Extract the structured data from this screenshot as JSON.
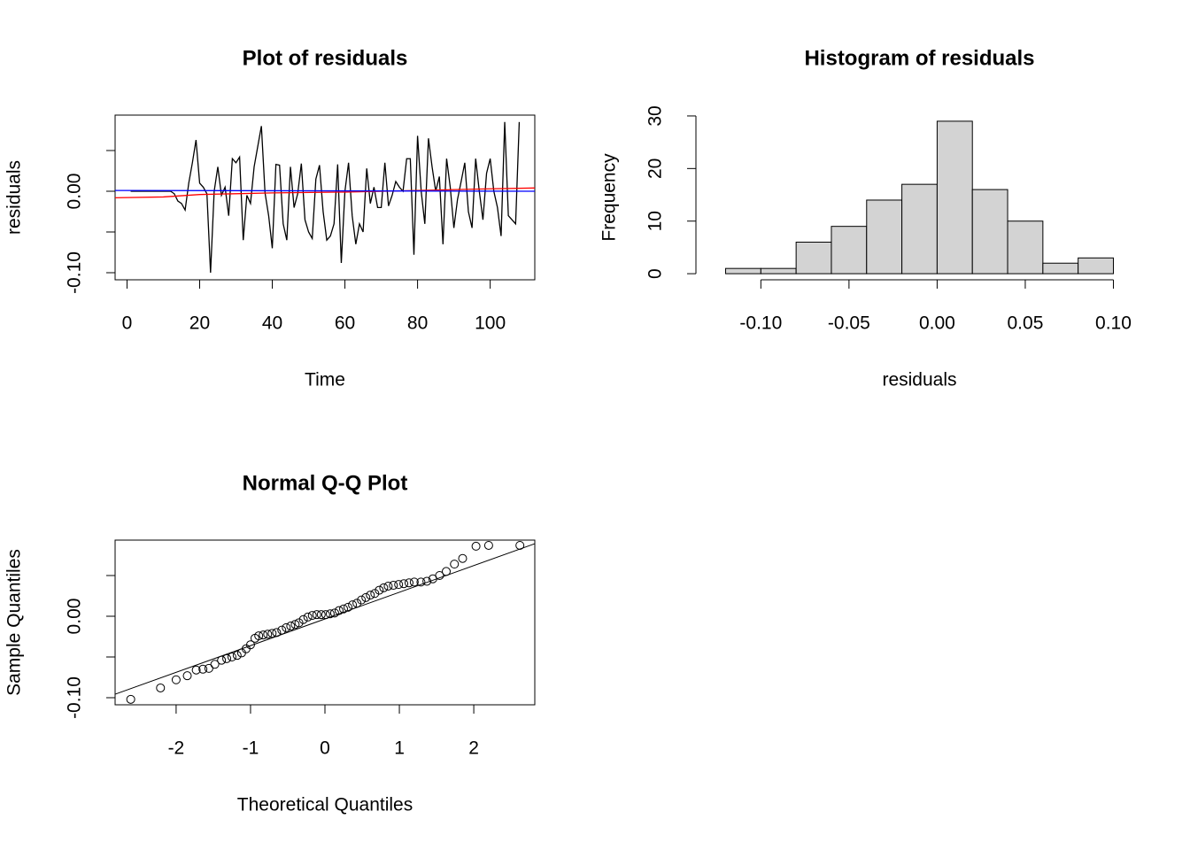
{
  "chart_data": [
    {
      "type": "line",
      "title": "Plot of residuals",
      "xlabel": "Time",
      "ylabel": "residuals",
      "box": true,
      "xlim": [
        -3.28,
        112.28
      ],
      "xticks": [
        0,
        20,
        40,
        60,
        80,
        100
      ],
      "ylim": [
        -0.1087,
        0.0935
      ],
      "yticks": [
        {
          "value": -0.1,
          "label": "-0.10"
        },
        {
          "value": -0.05,
          "label": null
        },
        {
          "value": 0,
          "label": "0.00"
        },
        {
          "value": 0.05,
          "label": null
        }
      ],
      "series": [
        {
          "color": "#000000",
          "x": [
            1,
            2,
            3,
            4,
            5,
            6,
            7,
            8,
            9,
            10,
            11,
            12,
            13,
            14,
            15,
            16,
            17,
            18,
            19,
            20,
            21,
            22,
            23,
            24,
            25,
            26,
            27,
            28,
            29,
            30,
            31,
            32,
            33,
            34,
            35,
            36,
            37,
            38,
            39,
            40,
            41,
            42,
            43,
            44,
            45,
            46,
            47,
            48,
            49,
            50,
            51,
            52,
            53,
            54,
            55,
            56,
            57,
            58,
            59,
            60,
            61,
            62,
            63,
            64,
            65,
            66,
            67,
            68,
            69,
            70,
            71,
            72,
            73,
            74,
            75,
            76,
            77,
            78,
            79,
            80,
            81,
            82,
            83,
            84,
            85,
            86,
            87,
            88,
            89,
            90,
            91,
            92,
            93,
            94,
            95,
            96,
            97,
            98,
            99,
            100,
            101,
            102,
            103,
            104,
            105,
            106,
            107,
            108
          ],
          "values": [
            0,
            0,
            0,
            0,
            0,
            0,
            0,
            0,
            0,
            0,
            0,
            0,
            -0.003,
            -0.012,
            -0.015,
            -0.023,
            0.01,
            0.035,
            0.063,
            0.01,
            0.005,
            -0.003,
            -0.1,
            0,
            0.03,
            -0.005,
            0.005,
            -0.03,
            0.04,
            0.035,
            0.042,
            -0.06,
            -0.005,
            -0.015,
            0.03,
            0.055,
            0.08,
            -0.002,
            -0.03,
            -0.07,
            0.033,
            0.032,
            -0.04,
            -0.06,
            0.03,
            -0.02,
            -0.003,
            0.034,
            -0.035,
            -0.05,
            -0.058,
            0.015,
            0.032,
            -0.025,
            -0.06,
            -0.055,
            -0.04,
            0.033,
            -0.088,
            0,
            0.035,
            -0.03,
            -0.065,
            -0.04,
            -0.05,
            0.028,
            -0.015,
            0.005,
            -0.02,
            -0.02,
            0.035,
            -0.018,
            -0.005,
            0.012,
            0.005,
            0,
            0.04,
            0.04,
            -0.078,
            0.068,
            0,
            -0.04,
            0.065,
            0.03,
            0,
            0.018,
            -0.065,
            0.04,
            0.005,
            -0.045,
            -0.01,
            0.012,
            0.035,
            -0.025,
            -0.045,
            0.04,
            0,
            -0.035,
            0.022,
            0.04,
            0,
            -0.02,
            -0.055,
            0.085,
            -0.03,
            -0.035,
            -0.04,
            0.085
          ]
        },
        {
          "color": "#ff0000",
          "x": [
            -3.28,
            10,
            20,
            40,
            60,
            80,
            100,
            112.28
          ],
          "values": [
            -0.008,
            -0.007,
            -0.004,
            -0.002,
            -0.001,
            0.001,
            0.003,
            0.004
          ]
        },
        {
          "color": "#0000ff",
          "x": [
            -3.28,
            112.28
          ],
          "values": [
            0.001,
            0
          ]
        }
      ]
    },
    {
      "type": "histogram",
      "title": "Histogram of residuals",
      "xlabel": "residuals",
      "ylabel": "Frequency",
      "box": false,
      "color": "#d3d3d3",
      "bins": [
        -0.12,
        -0.1,
        -0.08,
        -0.06,
        -0.04,
        -0.02,
        0,
        0.02,
        0.04,
        0.06,
        0.08,
        0.1
      ],
      "counts": [
        1,
        1,
        6,
        9,
        14,
        17,
        29,
        16,
        10,
        2,
        3
      ],
      "xlim": [
        -0.1288,
        0.1088
      ],
      "xticks": [
        {
          "value": -0.1,
          "label": "-0.10"
        },
        -0.05,
        {
          "value": 0,
          "label": "0.00"
        },
        0.05,
        {
          "value": 0.1,
          "label": "0.10"
        }
      ],
      "ylim": [
        -1.16,
        30.16
      ],
      "yticks": [
        0,
        10,
        20,
        30
      ]
    },
    {
      "type": "scatter",
      "title": "Normal Q-Q Plot",
      "xlabel": "Theoretical Quantiles",
      "ylabel": "Sample Quantiles",
      "box": true,
      "xlim": [
        -2.82,
        2.82
      ],
      "xticks": [
        -2,
        -1,
        0,
        1,
        2
      ],
      "ylim": [
        -0.1087,
        0.0935
      ],
      "yticks": [
        {
          "value": -0.1,
          "label": "-0.10"
        },
        {
          "value": -0.05,
          "label": null
        },
        {
          "value": 0,
          "label": "0.00"
        },
        {
          "value": 0.05,
          "label": null
        }
      ],
      "x": [
        -2.61,
        -2.21,
        -2.0,
        -1.85,
        -1.73,
        -1.64,
        -1.56,
        -1.48,
        -1.39,
        -1.32,
        -1.25,
        -1.18,
        -1.12,
        -1.06,
        -1.0,
        -0.94,
        -0.89,
        -0.83,
        -0.77,
        -0.71,
        -0.65,
        -0.58,
        -0.52,
        -0.46,
        -0.4,
        -0.35,
        -0.29,
        -0.23,
        -0.17,
        -0.11,
        -0.05,
        0.01,
        0.07,
        0.13,
        0.19,
        0.25,
        0.31,
        0.37,
        0.43,
        0.49,
        0.55,
        0.61,
        0.67,
        0.73,
        0.79,
        0.85,
        0.92,
        0.99,
        1.06,
        1.13,
        1.2,
        1.29,
        1.37,
        1.45,
        1.54,
        1.63,
        1.74,
        1.85,
        2.03,
        2.2,
        2.62
      ],
      "values": [
        -0.102,
        -0.088,
        -0.078,
        -0.073,
        -0.066,
        -0.065,
        -0.064,
        -0.059,
        -0.054,
        -0.052,
        -0.05,
        -0.048,
        -0.045,
        -0.04,
        -0.035,
        -0.027,
        -0.024,
        -0.023,
        -0.022,
        -0.021,
        -0.02,
        -0.017,
        -0.014,
        -0.012,
        -0.01,
        -0.008,
        -0.004,
        -0.001,
        0.001,
        0.002,
        0.002,
        0.002,
        0.003,
        0.004,
        0.007,
        0.009,
        0.011,
        0.014,
        0.016,
        0.02,
        0.023,
        0.026,
        0.028,
        0.032,
        0.035,
        0.037,
        0.038,
        0.039,
        0.04,
        0.041,
        0.042,
        0.042,
        0.043,
        0.046,
        0.05,
        0.055,
        0.064,
        0.071,
        0.086,
        0.087,
        0.087
      ],
      "reference_line": {
        "x": [
          -2.82,
          2.82
        ],
        "values": [
          -0.0957,
          0.0891
        ]
      }
    }
  ]
}
